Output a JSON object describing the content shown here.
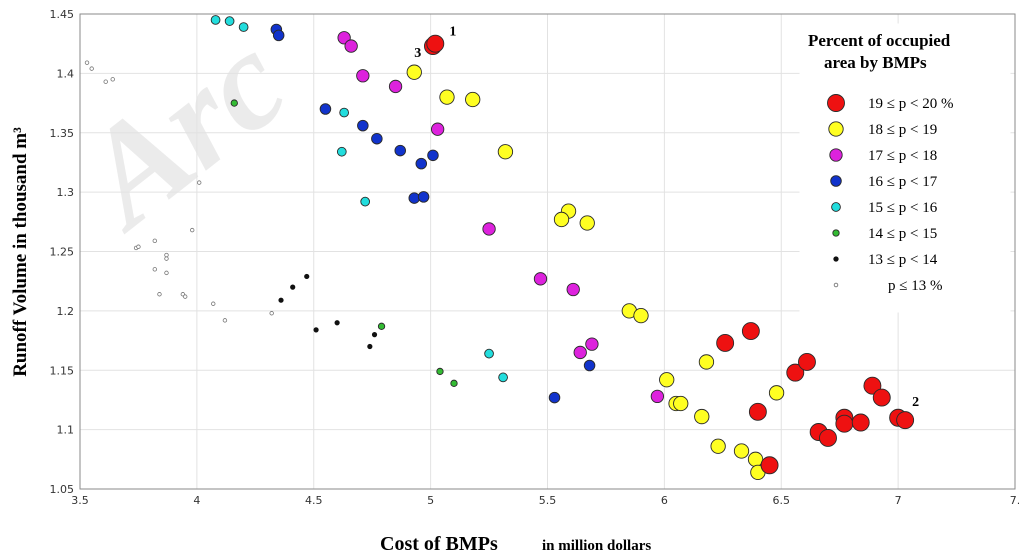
{
  "chart_data": {
    "type": "scatter",
    "watermark": "Arc",
    "xlabel_main": "Cost of BMPs",
    "xlabel_unit": "in million dollars",
    "ylabel": "Runoff Volume in thousand m³",
    "xlim": [
      3.5,
      7.5
    ],
    "ylim": [
      1.05,
      1.45
    ],
    "xticks": [
      "3.5",
      "4",
      "4.5",
      "5",
      "5.5",
      "6",
      "6.5",
      "7",
      "7."
    ],
    "yticks": [
      "1.05",
      "1.1",
      "1.15",
      "1.2",
      "1.25",
      "1.3",
      "1.35",
      "1.4",
      "1.45"
    ],
    "grid": true,
    "legend": {
      "title_line1": "Percent of occupied",
      "title_line2": "area by BMPs",
      "placement": "top-right"
    },
    "series": [
      {
        "name": "19 ≤ p < 20 %",
        "color": "#ee1111",
        "marker_level": 6,
        "points": [
          [
            5.01,
            1.423
          ],
          [
            5.02,
            1.425
          ],
          [
            6.26,
            1.173
          ],
          [
            6.37,
            1.183
          ],
          [
            6.56,
            1.148
          ],
          [
            6.61,
            1.157
          ],
          [
            6.4,
            1.115
          ],
          [
            6.66,
            1.098
          ],
          [
            6.7,
            1.093
          ],
          [
            6.45,
            1.07
          ],
          [
            6.77,
            1.11
          ],
          [
            6.77,
            1.105
          ],
          [
            6.84,
            1.106
          ],
          [
            6.89,
            1.137
          ],
          [
            6.93,
            1.127
          ],
          [
            7.0,
            1.11
          ],
          [
            7.03,
            1.108
          ]
        ]
      },
      {
        "name": "18 ≤ p < 19",
        "color": "#ffff22",
        "marker_level": 5,
        "points": [
          [
            4.93,
            1.401
          ],
          [
            5.07,
            1.38
          ],
          [
            5.18,
            1.378
          ],
          [
            5.32,
            1.334
          ],
          [
            5.59,
            1.284
          ],
          [
            5.56,
            1.277
          ],
          [
            5.67,
            1.274
          ],
          [
            5.85,
            1.2
          ],
          [
            5.9,
            1.196
          ],
          [
            6.01,
            1.142
          ],
          [
            6.18,
            1.157
          ],
          [
            6.05,
            1.122
          ],
          [
            6.07,
            1.122
          ],
          [
            6.16,
            1.111
          ],
          [
            6.23,
            1.086
          ],
          [
            6.33,
            1.082
          ],
          [
            6.39,
            1.075
          ],
          [
            6.4,
            1.064
          ],
          [
            6.48,
            1.131
          ]
        ]
      },
      {
        "name": "17 ≤ p < 18",
        "color": "#dd22dd",
        "marker_level": 4,
        "points": [
          [
            4.63,
            1.43
          ],
          [
            4.66,
            1.423
          ],
          [
            4.71,
            1.398
          ],
          [
            4.85,
            1.389
          ],
          [
            5.03,
            1.353
          ],
          [
            5.25,
            1.269
          ],
          [
            5.47,
            1.227
          ],
          [
            5.61,
            1.218
          ],
          [
            5.64,
            1.165
          ],
          [
            5.69,
            1.172
          ],
          [
            5.97,
            1.128
          ]
        ]
      },
      {
        "name": "16 ≤ p < 17",
        "color": "#1133cc",
        "marker_level": 3,
        "points": [
          [
            4.34,
            1.437
          ],
          [
            4.35,
            1.432
          ],
          [
            4.55,
            1.37
          ],
          [
            4.71,
            1.356
          ],
          [
            4.77,
            1.345
          ],
          [
            4.87,
            1.335
          ],
          [
            4.96,
            1.324
          ],
          [
            5.01,
            1.331
          ],
          [
            4.93,
            1.295
          ],
          [
            4.97,
            1.296
          ],
          [
            5.53,
            1.127
          ],
          [
            5.68,
            1.154
          ]
        ]
      },
      {
        "name": "15 ≤ p < 16",
        "color": "#22dddd",
        "marker_level": 2,
        "points": [
          [
            4.08,
            1.445
          ],
          [
            4.14,
            1.444
          ],
          [
            4.2,
            1.439
          ],
          [
            4.63,
            1.367
          ],
          [
            4.62,
            1.334
          ],
          [
            4.72,
            1.292
          ],
          [
            5.25,
            1.164
          ],
          [
            5.31,
            1.144
          ]
        ]
      },
      {
        "name": "14 ≤ p < 15",
        "color": "#33bb33",
        "marker_level": 1,
        "points": [
          [
            4.16,
            1.375
          ],
          [
            4.79,
            1.187
          ],
          [
            5.04,
            1.149
          ],
          [
            5.1,
            1.139
          ]
        ]
      },
      {
        "name": "13 ≤ p < 14",
        "color": "#111111",
        "marker_level": 0.5,
        "points": [
          [
            4.47,
            1.229
          ],
          [
            4.41,
            1.22
          ],
          [
            4.36,
            1.209
          ],
          [
            4.51,
            1.184
          ],
          [
            4.6,
            1.19
          ],
          [
            4.76,
            1.18
          ],
          [
            4.74,
            1.17
          ]
        ]
      },
      {
        "name": "p ≤ 13 %",
        "color": "#999999",
        "marker_level": 0,
        "points": [
          [
            3.53,
            1.409
          ],
          [
            3.55,
            1.404
          ],
          [
            3.61,
            1.393
          ],
          [
            3.64,
            1.395
          ],
          [
            4.01,
            1.308
          ],
          [
            3.74,
            1.253
          ],
          [
            3.75,
            1.254
          ],
          [
            3.82,
            1.259
          ],
          [
            3.87,
            1.247
          ],
          [
            3.87,
            1.244
          ],
          [
            3.82,
            1.235
          ],
          [
            3.87,
            1.232
          ],
          [
            3.98,
            1.268
          ],
          [
            3.84,
            1.214
          ],
          [
            3.94,
            1.214
          ],
          [
            3.95,
            1.212
          ],
          [
            4.07,
            1.206
          ],
          [
            4.12,
            1.192
          ],
          [
            4.32,
            1.198
          ]
        ]
      }
    ],
    "annotations": [
      {
        "text": "1",
        "x": 5.08,
        "y": 1.432
      },
      {
        "text": "3",
        "x": 4.93,
        "y": 1.414
      },
      {
        "text": "2",
        "x": 7.06,
        "y": 1.12
      }
    ]
  }
}
